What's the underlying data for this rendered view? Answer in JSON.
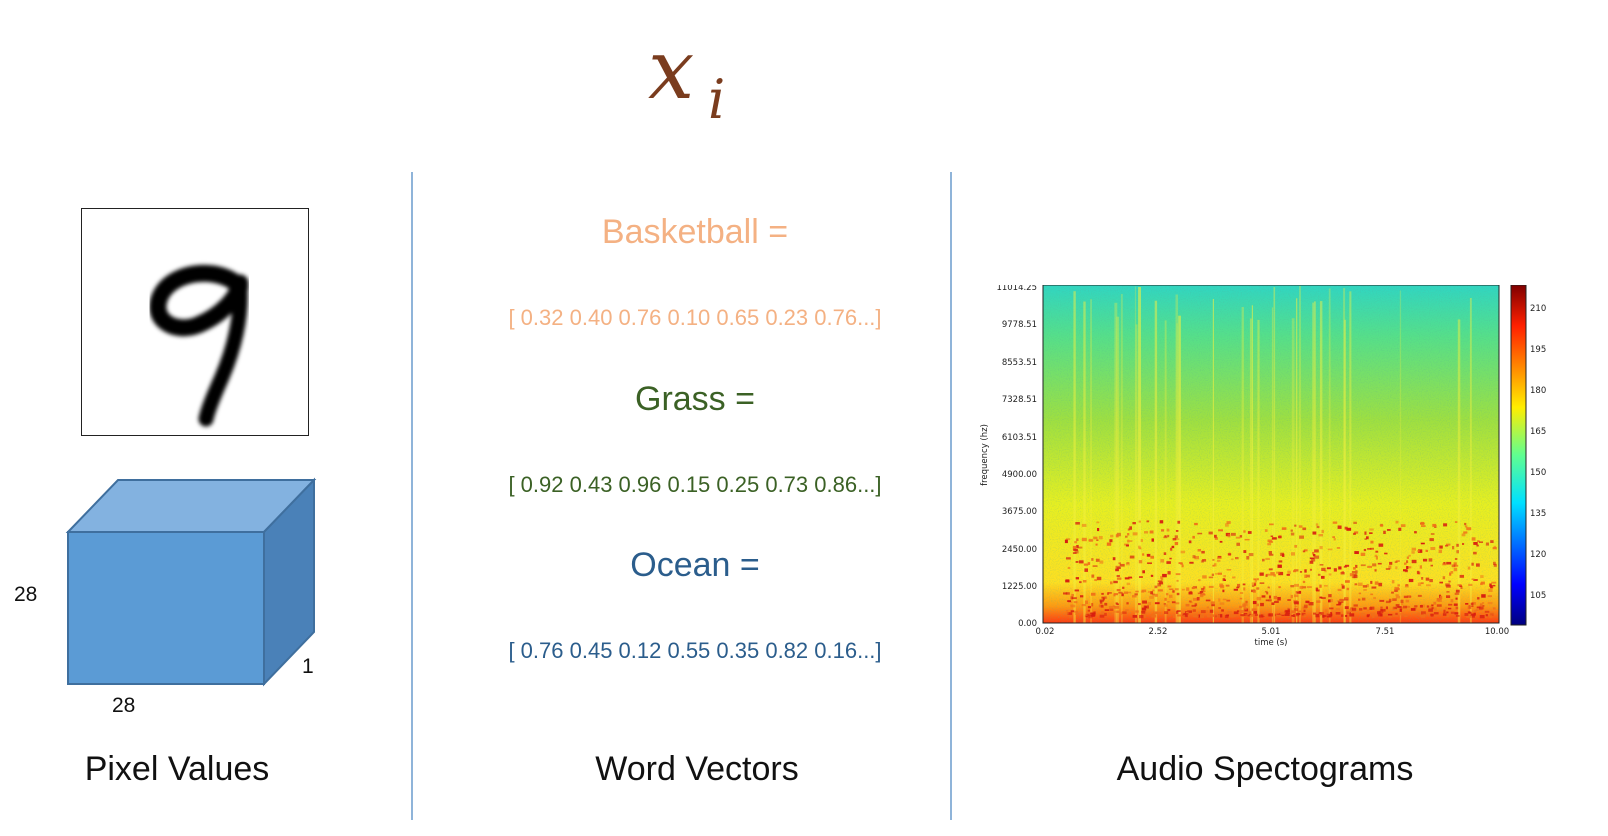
{
  "formula": {
    "symbol": "x",
    "subscript": "i",
    "color": "#7a3c1e"
  },
  "pixel": {
    "caption": "Pixel Values",
    "height_label": "28",
    "width_label": "28",
    "depth_label": "1",
    "digit_label": "9",
    "box_colors": {
      "front": "#5b9bd5",
      "top": "#83b2e0",
      "side": "#4a81b8",
      "edge": "#3f6f9e"
    }
  },
  "words": {
    "caption": "Word Vectors",
    "items": [
      {
        "label": "Basketball =",
        "vector": "[ 0.32 0.40 0.76 0.10 0.65 0.23 0.76...]",
        "color": "#f4b183"
      },
      {
        "label": "Grass =",
        "vector": "[ 0.92 0.43 0.96 0.15 0.25 0.73 0.86...]",
        "color": "#3b6125"
      },
      {
        "label": "Ocean =",
        "vector": "[ 0.76 0.45 0.12 0.55 0.35 0.82 0.16...]",
        "color": "#2b5d8c"
      }
    ]
  },
  "audio": {
    "caption": "Audio Spectograms",
    "xlabel": "time (s)",
    "ylabel": "frequency (hz)",
    "x_ticks": [
      "0.02",
      "2.52",
      "5.01",
      "7.51",
      "10.00"
    ],
    "y_ticks": [
      "0.00",
      "1225.00",
      "2450.00",
      "3675.00",
      "4900.00",
      "6103.51",
      "7328.51",
      "8553.51",
      "9778.51",
      "11014.25"
    ],
    "colorbar_ticks": [
      "105",
      "120",
      "135",
      "150",
      "165",
      "180",
      "195",
      "210"
    ],
    "colormap": "jet"
  }
}
